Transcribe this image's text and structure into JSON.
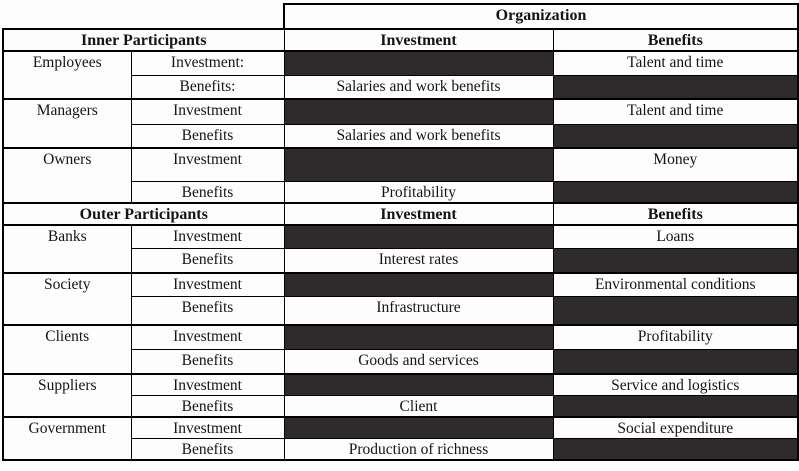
{
  "organization_title": "Organization",
  "colors": {
    "dark_cell": "#2f2b2c",
    "border": "#000000",
    "text": "#151413"
  },
  "sections": [
    {
      "header": "Inner Participants",
      "investment_header": "Investment",
      "benefits_header": "Benefits",
      "groups": [
        {
          "name": "Employees",
          "investment_label": "Investment:",
          "benefit_value": "Talent and time",
          "benefits_label": "Benefits:",
          "investment_value": "Salaries and work benefits"
        },
        {
          "name": "Managers",
          "investment_label": "Investment",
          "benefit_value": "Talent and time",
          "benefits_label": "Benefits",
          "investment_value": "Salaries and work benefits"
        },
        {
          "name": "Owners",
          "investment_label": "Investment",
          "benefit_value": "Money",
          "benefits_label": "Benefits",
          "investment_value": "Profitability"
        }
      ]
    },
    {
      "header": "Outer Participants",
      "investment_header": "Investment",
      "benefits_header": "Benefits",
      "groups": [
        {
          "name": "Banks",
          "investment_label": "Investment",
          "benefit_value": "Loans",
          "benefits_label": "Benefits",
          "investment_value": "Interest rates"
        },
        {
          "name": "Society",
          "investment_label": "Investment",
          "benefit_value": "Environmental conditions",
          "benefits_label": "Benefits",
          "investment_value": "Infrastructure"
        },
        {
          "name": "Clients",
          "investment_label": "Investment",
          "benefit_value": "Profitability",
          "benefits_label": "Benefits",
          "investment_value": "Goods and services"
        },
        {
          "name": "Suppliers",
          "investment_label": "Investment",
          "benefit_value": "Service and logistics",
          "benefits_label": "Benefits",
          "investment_value": "Client"
        },
        {
          "name": "Government",
          "investment_label": "Investment",
          "benefit_value": "Social expenditure",
          "benefits_label": "Benefits",
          "investment_value": "Production of richness"
        }
      ]
    }
  ]
}
